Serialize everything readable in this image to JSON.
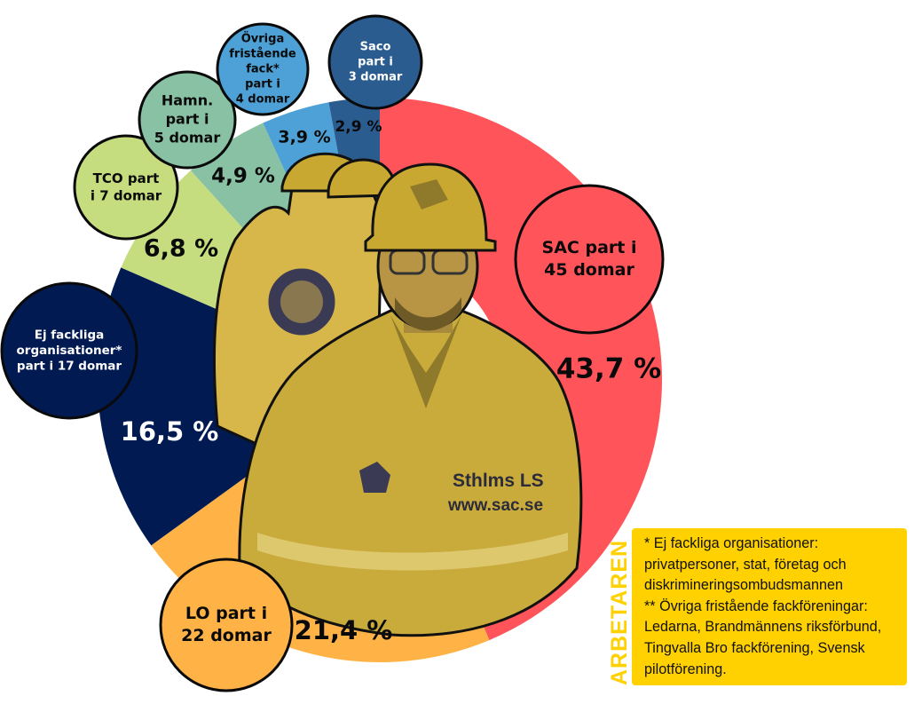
{
  "chart_data": {
    "type": "pie",
    "categories": [
      "SAC",
      "LO",
      "Ej fackliga organisationer",
      "TCO",
      "Hamn.",
      "Övriga fristående fack",
      "Saco"
    ],
    "values": [
      43.7,
      21.4,
      16.5,
      6.8,
      4.9,
      3.9,
      2.9
    ],
    "value_labels": [
      "43,7 %",
      "21,4 %",
      "16,5 %",
      "6,8 %",
      "4,9 %",
      "3,9 %",
      "2,9 %"
    ],
    "bubble_labels": [
      [
        "SAC part i",
        "45 domar"
      ],
      [
        "LO part i",
        "22 domar"
      ],
      [
        "Ej fackliga",
        "organisationer*",
        "part i 17 domar"
      ],
      [
        "TCO part",
        "i 7 domar"
      ],
      [
        "Hamn.",
        "part i",
        "5 domar"
      ],
      [
        "Övriga",
        "fristående",
        "fack*",
        "part i",
        "4 domar"
      ],
      [
        "Saco",
        "part i",
        "3 domar"
      ]
    ],
    "colors": [
      "#ff5459",
      "#ffb347",
      "#011a52",
      "#c6dd7f",
      "#88c1a4",
      "#4da1d6",
      "#2b5c90"
    ]
  },
  "photo": {
    "vest_text_1": "Sthlms LS",
    "vest_text_2": "www.sac.se"
  },
  "footnote": {
    "line1": "* Ej fackliga organisationer: privatpersoner, stat, företag och diskrimineringsombudsmannen",
    "line2": "** Övriga fristående fackföreningar: Ledarna, Brandmännens riksförbund, Tingvalla Bro fackförening, Svensk pilotförening."
  },
  "brand": "ARBETAREN"
}
